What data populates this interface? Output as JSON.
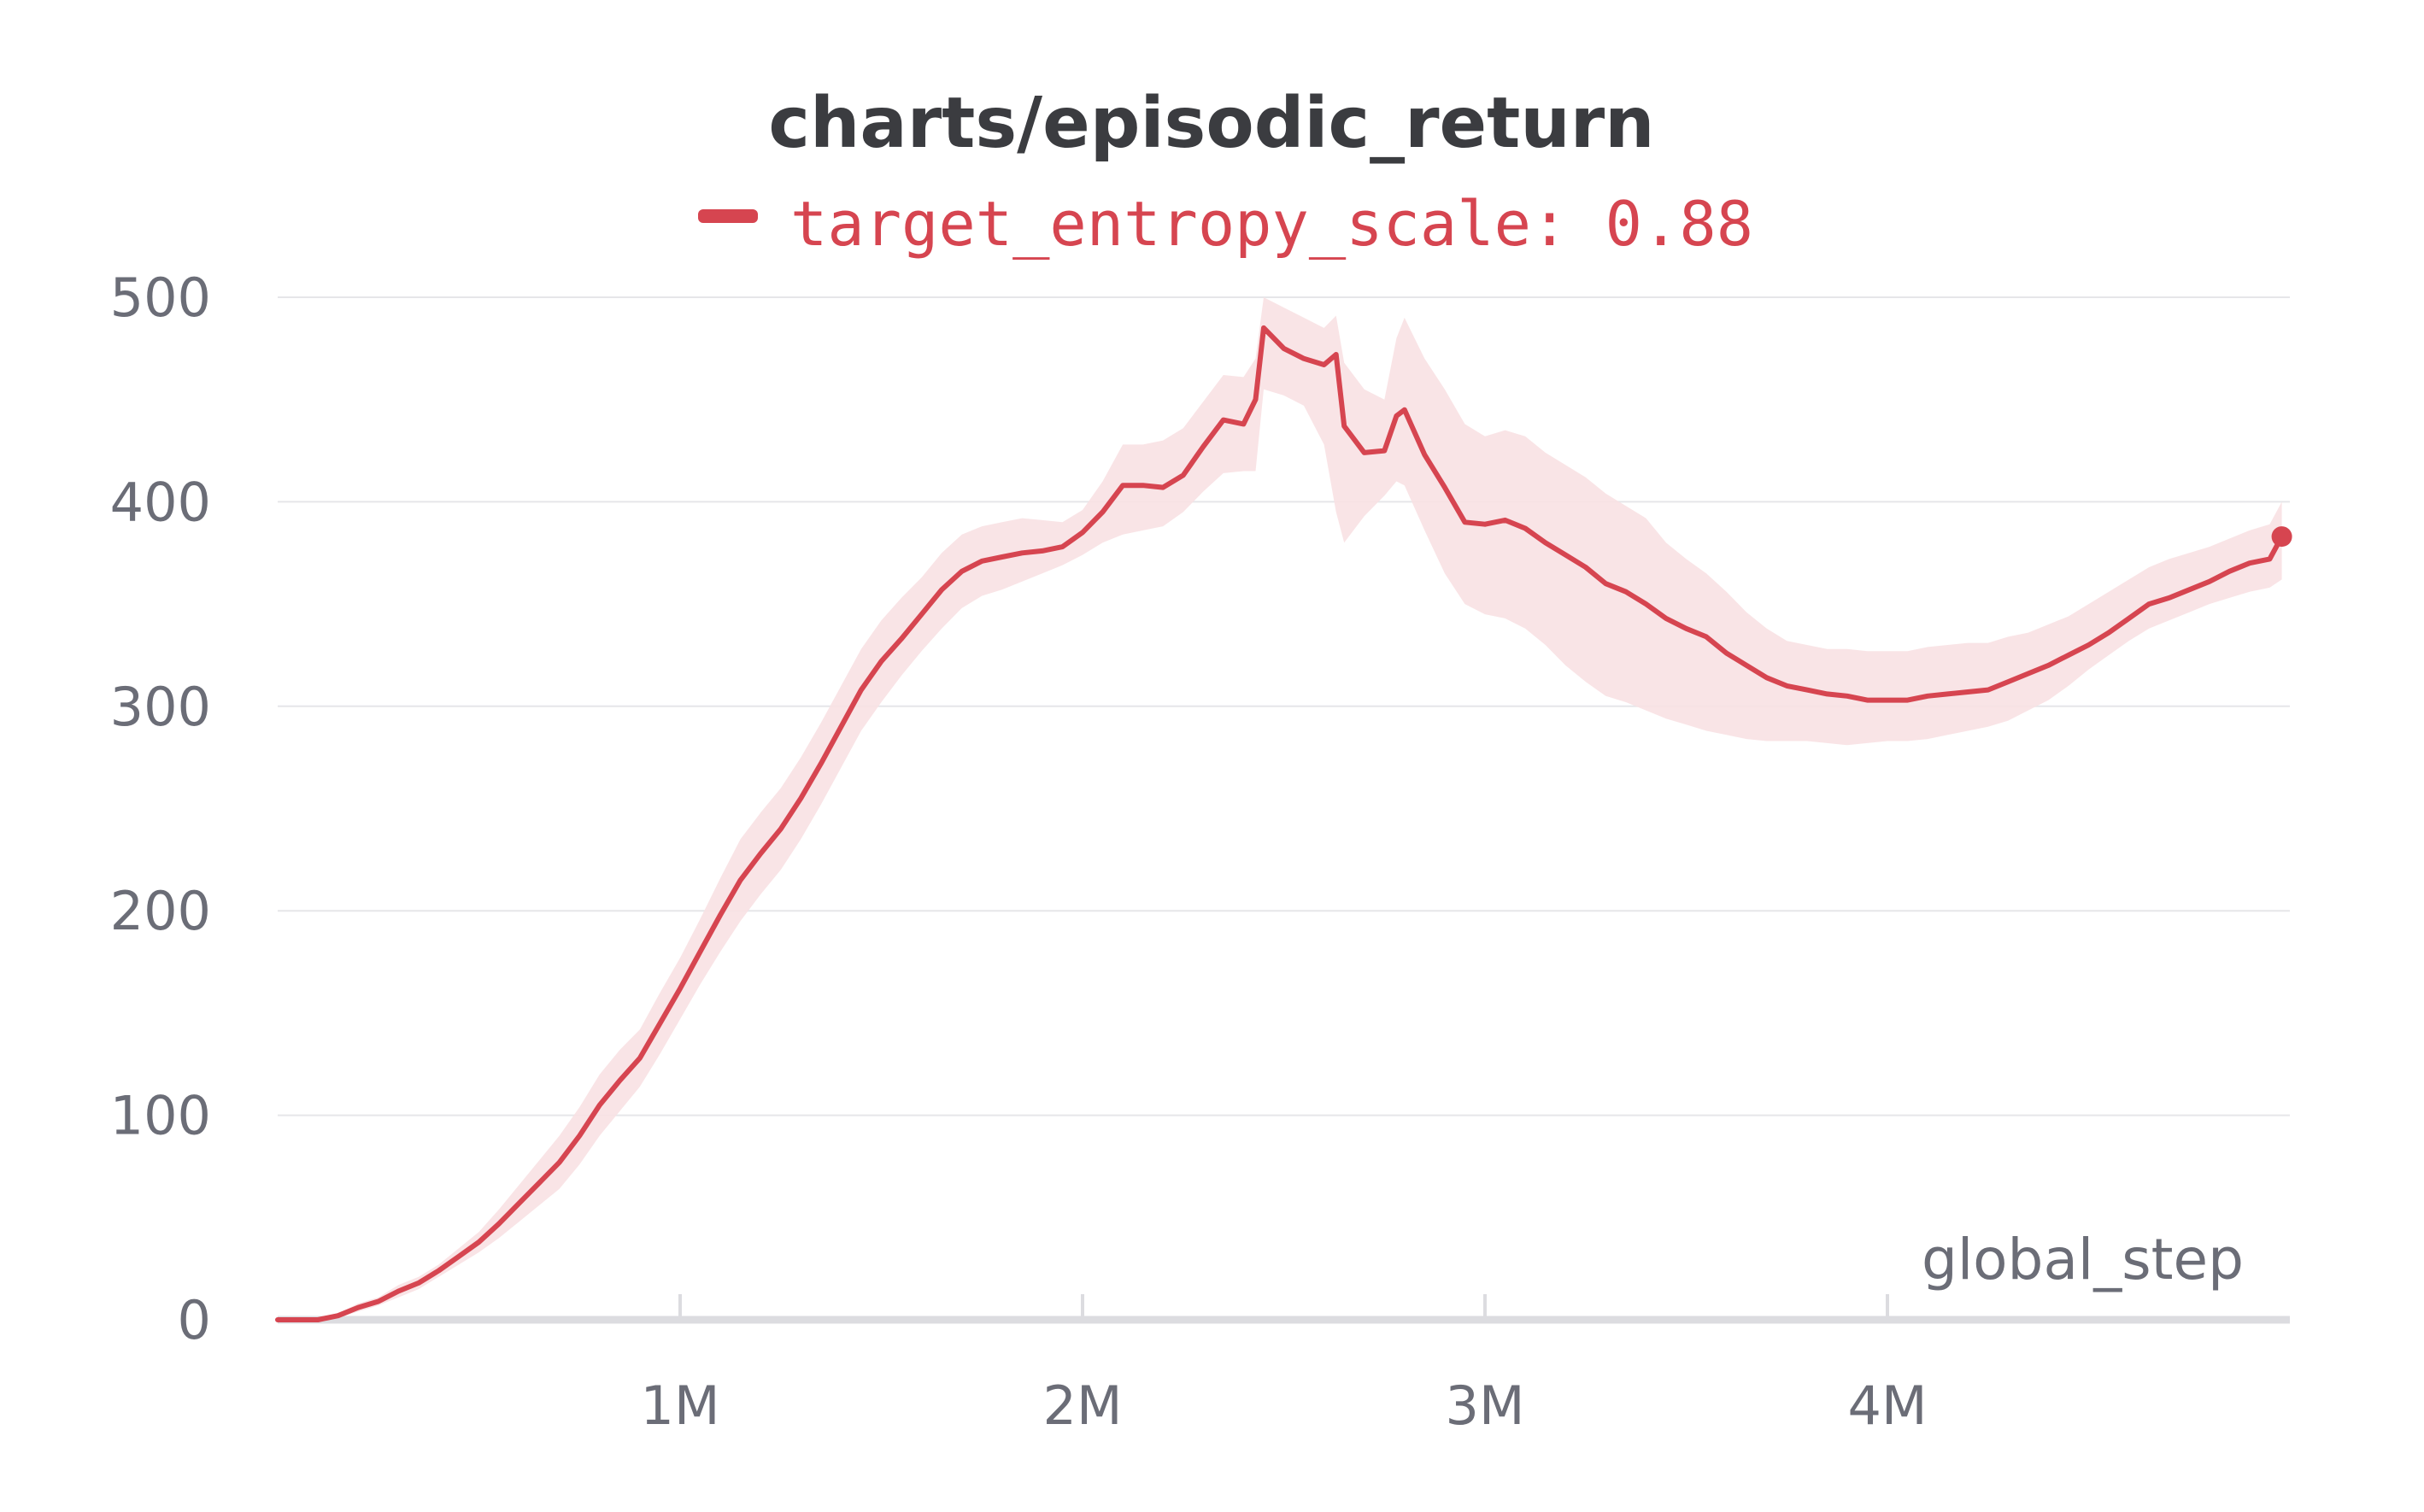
{
  "chart_data": {
    "type": "line",
    "title": "charts/episodic_return",
    "xlabel": "global_step",
    "ylabel": "",
    "xlim": [
      0,
      5000000
    ],
    "ylim": [
      0,
      500
    ],
    "grid": true,
    "legend": "top-center",
    "x_ticks": [
      {
        "value": 1000000,
        "label": "1M"
      },
      {
        "value": 2000000,
        "label": "2M"
      },
      {
        "value": 3000000,
        "label": "3M"
      },
      {
        "value": 4000000,
        "label": "4M"
      }
    ],
    "y_ticks": [
      {
        "value": 0,
        "label": "0"
      },
      {
        "value": 100,
        "label": "100"
      },
      {
        "value": 200,
        "label": "200"
      },
      {
        "value": 300,
        "label": "300"
      },
      {
        "value": 400,
        "label": "400"
      },
      {
        "value": 500,
        "label": "500"
      }
    ],
    "series": [
      {
        "name": "target_entropy_scale: 0.88",
        "color": "#d64550",
        "band_color": "#f8e1e3",
        "x": [
          0,
          100000,
          150000,
          200000,
          250000,
          300000,
          350000,
          400000,
          450000,
          500000,
          550000,
          600000,
          650000,
          700000,
          750000,
          800000,
          850000,
          900000,
          950000,
          1000000,
          1050000,
          1100000,
          1150000,
          1200000,
          1250000,
          1300000,
          1350000,
          1400000,
          1450000,
          1500000,
          1550000,
          1600000,
          1650000,
          1700000,
          1750000,
          1800000,
          1850000,
          1900000,
          1950000,
          2000000,
          2050000,
          2100000,
          2150000,
          2200000,
          2250000,
          2300000,
          2350000,
          2400000,
          2430000,
          2450000,
          2500000,
          2550000,
          2600000,
          2630000,
          2650000,
          2700000,
          2750000,
          2780000,
          2800000,
          2850000,
          2900000,
          2950000,
          3000000,
          3050000,
          3100000,
          3150000,
          3200000,
          3250000,
          3300000,
          3350000,
          3400000,
          3450000,
          3500000,
          3550000,
          3600000,
          3650000,
          3700000,
          3750000,
          3800000,
          3850000,
          3900000,
          3950000,
          4000000,
          4050000,
          4100000,
          4150000,
          4200000,
          4250000,
          4300000,
          4350000,
          4400000,
          4450000,
          4500000,
          4550000,
          4600000,
          4650000,
          4700000,
          4750000,
          4800000,
          4850000,
          4900000,
          4950000,
          4980000
        ],
        "y": [
          0,
          0,
          2,
          6,
          9,
          14,
          18,
          24,
          31,
          38,
          47,
          57,
          67,
          77,
          90,
          105,
          117,
          128,
          145,
          162,
          180,
          198,
          215,
          228,
          240,
          255,
          272,
          290,
          308,
          322,
          333,
          345,
          357,
          366,
          371,
          373,
          375,
          376,
          378,
          385,
          395,
          408,
          408,
          407,
          413,
          427,
          440,
          438,
          450,
          485,
          475,
          470,
          467,
          472,
          437,
          424,
          425,
          442,
          445,
          423,
          407,
          390,
          389,
          391,
          387,
          380,
          374,
          368,
          360,
          356,
          350,
          343,
          338,
          334,
          326,
          320,
          314,
          310,
          308,
          306,
          305,
          303,
          303,
          303,
          305,
          306,
          307,
          308,
          312,
          316,
          320,
          325,
          330,
          336,
          343,
          350,
          353,
          357,
          361,
          366,
          370,
          372,
          383
        ],
        "y_lower": [
          0,
          0,
          1,
          4,
          7,
          11,
          15,
          21,
          27,
          33,
          40,
          48,
          56,
          64,
          76,
          90,
          102,
          114,
          130,
          147,
          164,
          180,
          195,
          208,
          220,
          235,
          252,
          270,
          288,
          302,
          315,
          327,
          338,
          348,
          354,
          357,
          361,
          365,
          369,
          374,
          380,
          384,
          386,
          388,
          395,
          405,
          414,
          415,
          415,
          455,
          452,
          447,
          428,
          395,
          380,
          393,
          403,
          410,
          408,
          386,
          365,
          350,
          345,
          343,
          338,
          330,
          320,
          312,
          305,
          302,
          298,
          294,
          291,
          288,
          286,
          284,
          283,
          283,
          283,
          282,
          281,
          282,
          283,
          283,
          284,
          286,
          288,
          290,
          293,
          298,
          303,
          310,
          318,
          325,
          332,
          338,
          342,
          346,
          350,
          353,
          356,
          358,
          362
        ],
        "y_upper": [
          0,
          0,
          3,
          8,
          11,
          17,
          21,
          27,
          35,
          43,
          54,
          66,
          78,
          90,
          104,
          120,
          132,
          142,
          160,
          177,
          196,
          216,
          235,
          248,
          260,
          275,
          292,
          310,
          328,
          342,
          353,
          363,
          375,
          384,
          388,
          390,
          392,
          391,
          390,
          396,
          410,
          428,
          428,
          430,
          436,
          449,
          462,
          461,
          470,
          500,
          495,
          490,
          485,
          491,
          468,
          455,
          450,
          480,
          490,
          470,
          455,
          438,
          432,
          435,
          432,
          424,
          418,
          412,
          404,
          398,
          392,
          380,
          372,
          365,
          356,
          346,
          338,
          332,
          330,
          328,
          328,
          327,
          327,
          327,
          329,
          330,
          331,
          331,
          334,
          336,
          340,
          344,
          350,
          356,
          362,
          368,
          372,
          375,
          378,
          382,
          386,
          389,
          400
        ]
      }
    ]
  }
}
